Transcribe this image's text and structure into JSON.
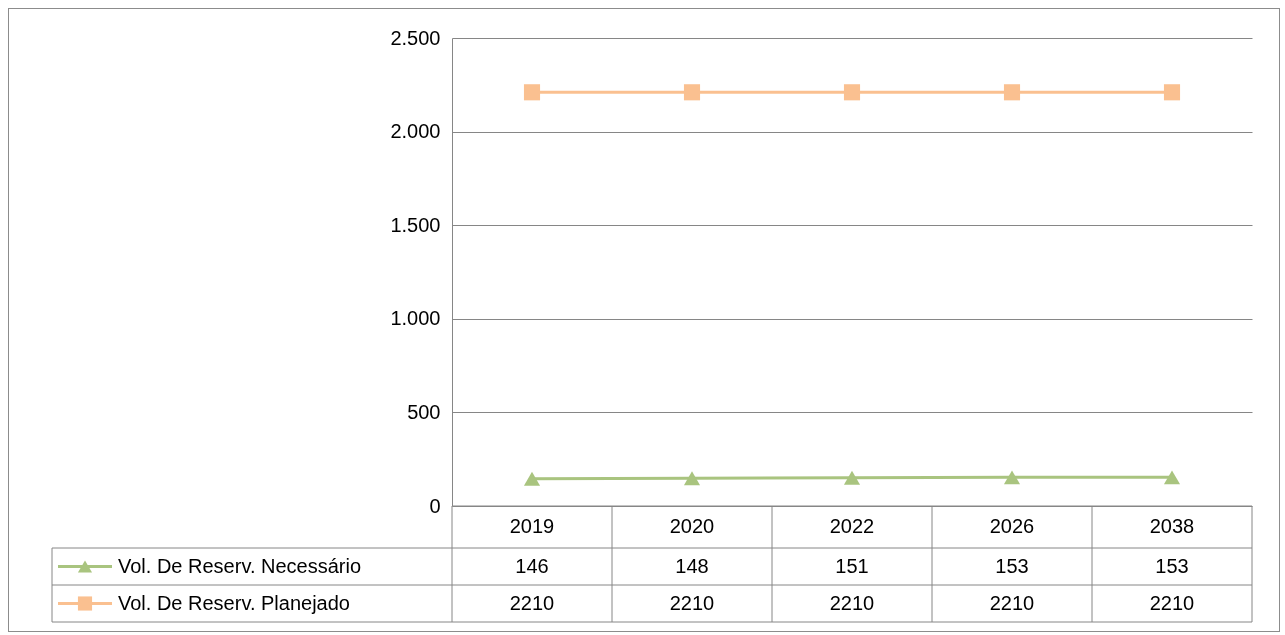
{
  "chart_data": {
    "type": "line",
    "categories": [
      "2019",
      "2020",
      "2022",
      "2026",
      "2038"
    ],
    "series": [
      {
        "name": "Vol. De Reserv. Necessário",
        "color": "#a9c47f",
        "marker": "triangle",
        "values": [
          146,
          148,
          151,
          153,
          153
        ]
      },
      {
        "name": "Vol. De Reserv. Planejado",
        "color": "#fac090",
        "marker": "square",
        "values": [
          2210,
          2210,
          2210,
          2210,
          2210
        ]
      }
    ],
    "ylim": [
      0,
      2500
    ],
    "yticks": [
      0,
      {
        "value": 500,
        "label": "500"
      },
      {
        "value": 1000,
        "label": "1.000"
      },
      {
        "value": 1500,
        "label": "1.500"
      },
      {
        "value": 2000,
        "label": "2.000"
      },
      {
        "value": 2500,
        "label": "2.500"
      }
    ],
    "grid": "y",
    "legend": "bottom",
    "data_labels": true
  }
}
